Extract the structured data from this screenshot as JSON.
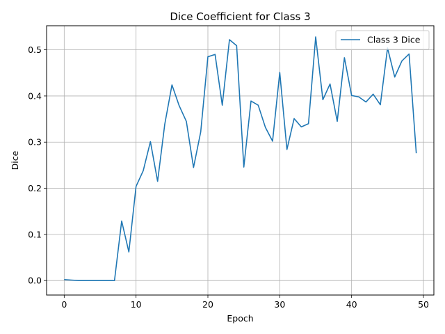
{
  "chart_data": {
    "type": "line",
    "title": "Dice Coefficient for Class 3",
    "xlabel": "Epoch",
    "ylabel": "Dice",
    "xlim": [
      -2.45,
      51.45
    ],
    "ylim": [
      -0.0314,
      0.5522
    ],
    "xticks": [
      0,
      10,
      20,
      30,
      40,
      50
    ],
    "yticks": [
      0.0,
      0.1,
      0.2,
      0.3,
      0.4,
      0.5
    ],
    "ytick_labels": [
      "0.0",
      "0.1",
      "0.2",
      "0.3",
      "0.4",
      "0.5"
    ],
    "grid": true,
    "legend_position": "top-right",
    "series": [
      {
        "name": "Class 3 Dice",
        "color": "#1f77b4",
        "x": [
          0,
          1,
          2,
          3,
          4,
          5,
          6,
          7,
          8,
          9,
          10,
          11,
          12,
          13,
          14,
          15,
          16,
          17,
          18,
          19,
          20,
          21,
          22,
          23,
          24,
          25,
          26,
          27,
          28,
          29,
          30,
          31,
          32,
          33,
          34,
          35,
          36,
          37,
          38,
          39,
          40,
          41,
          42,
          43,
          44,
          45,
          46,
          47,
          48,
          49
        ],
        "y": [
          0.002,
          0.001,
          0.0,
          0.0,
          0.0,
          0.0,
          0.0,
          0.0,
          0.129,
          0.062,
          0.204,
          0.238,
          0.301,
          0.215,
          0.339,
          0.424,
          0.379,
          0.345,
          0.245,
          0.322,
          0.485,
          0.49,
          0.38,
          0.522,
          0.509,
          0.246,
          0.389,
          0.38,
          0.332,
          0.302,
          0.451,
          0.284,
          0.351,
          0.333,
          0.34,
          0.528,
          0.392,
          0.426,
          0.345,
          0.483,
          0.401,
          0.398,
          0.387,
          0.404,
          0.381,
          0.504,
          0.441,
          0.476,
          0.491,
          0.276
        ]
      }
    ]
  }
}
